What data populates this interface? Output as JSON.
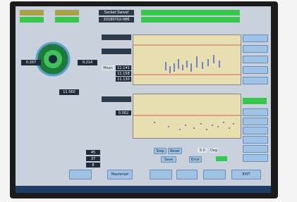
{
  "header": {
    "title": "Socket Swivel",
    "code": "20180702-086"
  },
  "gauge": {
    "left_value": "0.207",
    "right_value": "0.214",
    "center_value": "11.560"
  },
  "stats": {
    "labels": [
      "Mean"
    ],
    "values": [
      "11.141",
      "11.158",
      "11.130"
    ]
  },
  "lower_stat": "0.002",
  "counts": [
    "45",
    "37",
    "8"
  ],
  "controls": {
    "stop": "Stop",
    "reset": "Reset",
    "save": "Save",
    "step": "5.0",
    "unit": "Deg",
    "error": "Error"
  },
  "buttons": {
    "masterset": "Masterset",
    "exit": "EXIT"
  }
}
